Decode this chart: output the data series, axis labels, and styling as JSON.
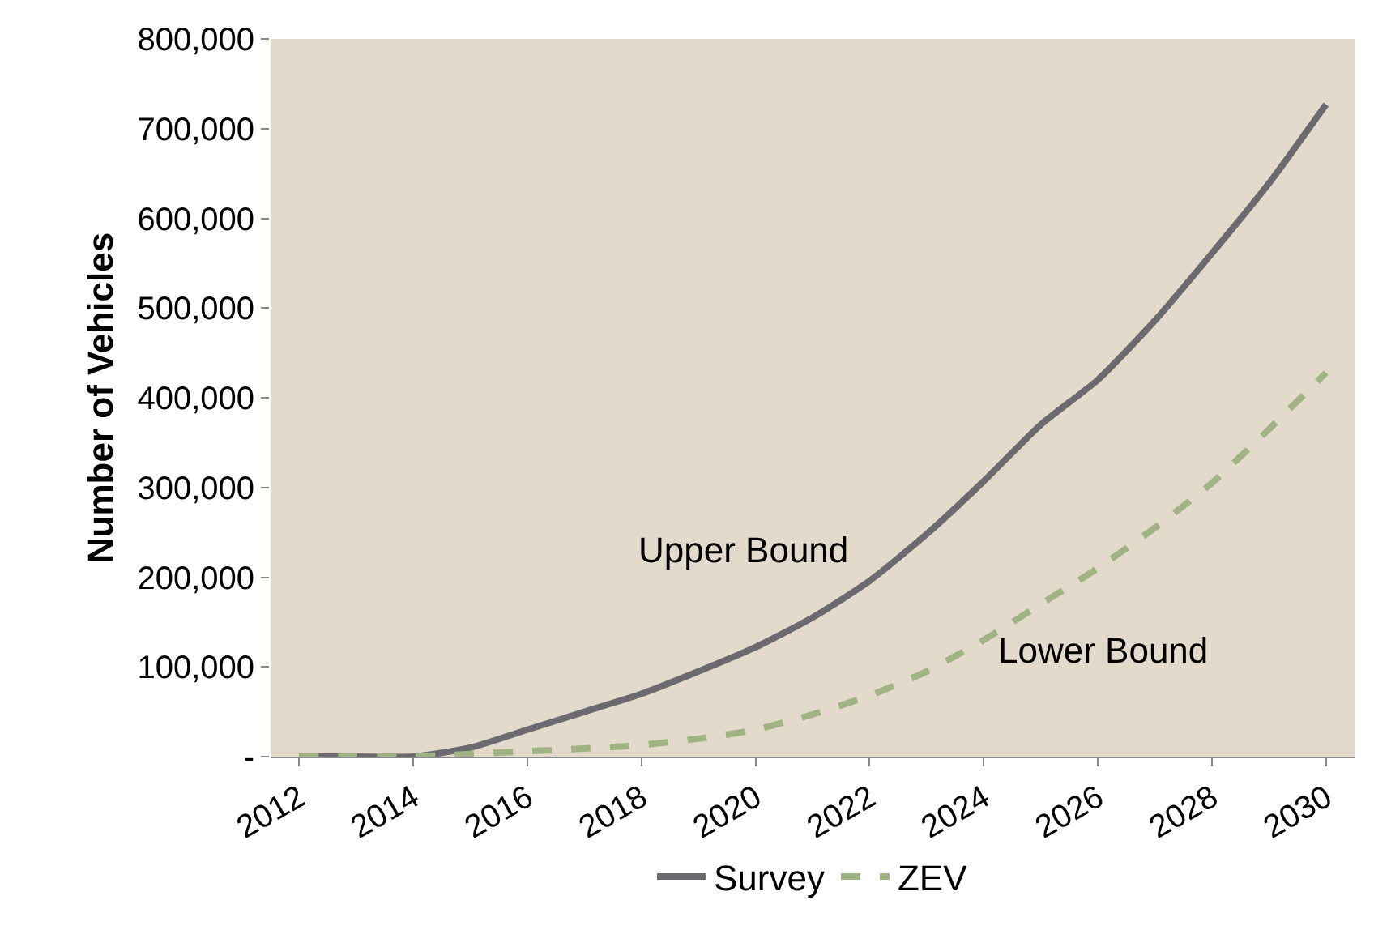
{
  "chart_data": {
    "type": "line",
    "ylabel": "Number of Vehicles",
    "categories": [
      "2012",
      null,
      "2014",
      null,
      "2016",
      null,
      "2018",
      null,
      "2020",
      null,
      "2022",
      null,
      "2024",
      null,
      "2026",
      null,
      "2028",
      null,
      "2030"
    ],
    "series": [
      {
        "name": "Survey",
        "color": "#6b6a70",
        "line_style": "solid",
        "values": [
          0,
          0,
          0,
          10000,
          30000,
          50000,
          70000,
          95000,
          122000,
          155000,
          196000,
          248000,
          307000,
          370000,
          420000,
          486000,
          561000,
          639000,
          727000
        ]
      },
      {
        "name": "ZEV",
        "color": "#a0b383",
        "line_style": "dashed",
        "values": [
          0,
          0,
          0,
          3000,
          6000,
          9000,
          13000,
          20000,
          30000,
          47000,
          68000,
          95000,
          130000,
          170000,
          210000,
          255000,
          305000,
          365000,
          428000
        ]
      }
    ],
    "ylim": [
      0,
      800000
    ],
    "yticks": [
      {
        "value": 0,
        "label": "-"
      },
      {
        "value": 100000,
        "label": "100,000"
      },
      {
        "value": 200000,
        "label": "200,000"
      },
      {
        "value": 300000,
        "label": "300,000"
      },
      {
        "value": 400000,
        "label": "400,000"
      },
      {
        "value": 500000,
        "label": "500,000"
      },
      {
        "value": 600000,
        "label": "600,000"
      },
      {
        "value": 700000,
        "label": "700,000"
      },
      {
        "value": 800000,
        "label": "800,000"
      }
    ],
    "annotations": [
      "Upper Bound",
      "Lower Bound"
    ],
    "grid": false,
    "legend": "bottom",
    "marker": "none"
  }
}
